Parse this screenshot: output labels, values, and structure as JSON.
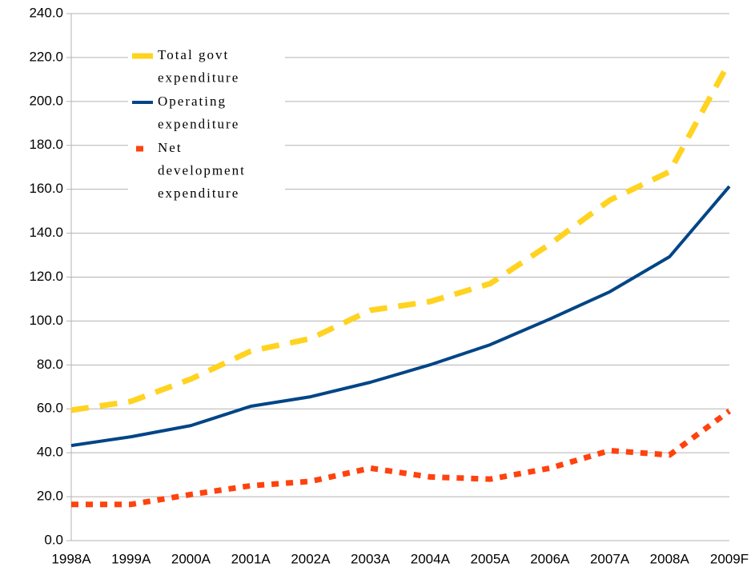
{
  "chart_data": {
    "type": "line",
    "categories": [
      "1998A",
      "1999A",
      "2000A",
      "2001A",
      "2002A",
      "2003A",
      "2004A",
      "2005A",
      "2006A",
      "2007A",
      "2008A",
      "2009F"
    ],
    "series": [
      {
        "name": "Total govt expenditure",
        "color": "#ffd320",
        "line_style": "dashed",
        "values": [
          59.4,
          63.4,
          73.6,
          86.3,
          92,
          104.9,
          108.9,
          117,
          135,
          155,
          168,
          218
        ]
      },
      {
        "name": "Operating expenditure",
        "color": "#004586",
        "line_style": "solid",
        "values": [
          43.3,
          47.3,
          52.4,
          61.2,
          65.5,
          72.1,
          80.1,
          89.2,
          100.9,
          113.3,
          129.3,
          161.3
        ]
      },
      {
        "name": "Net development expenditure",
        "color": "#ff420e",
        "line_style": "dotted",
        "values": [
          16.5,
          16.5,
          21,
          25,
          27,
          33,
          29,
          28,
          33,
          41,
          39,
          59
        ]
      }
    ],
    "ylim": [
      0,
      240
    ],
    "yticks": [
      {
        "value": 0,
        "label": "0.0"
      },
      {
        "value": 20,
        "label": "20.0"
      },
      {
        "value": 40,
        "label": "40.0"
      },
      {
        "value": 60,
        "label": "60.0"
      },
      {
        "value": 80,
        "label": "80.0"
      },
      {
        "value": 100,
        "label": "100.0"
      },
      {
        "value": 120,
        "label": "120.0"
      },
      {
        "value": 140,
        "label": "140.0"
      },
      {
        "value": 160,
        "label": "160.0"
      },
      {
        "value": 180,
        "label": "180.0"
      },
      {
        "value": 200,
        "label": "200.0"
      },
      {
        "value": 220,
        "label": "220.0"
      },
      {
        "value": 240,
        "label": "240.0"
      }
    ],
    "grid": true,
    "legend": "upper left"
  }
}
